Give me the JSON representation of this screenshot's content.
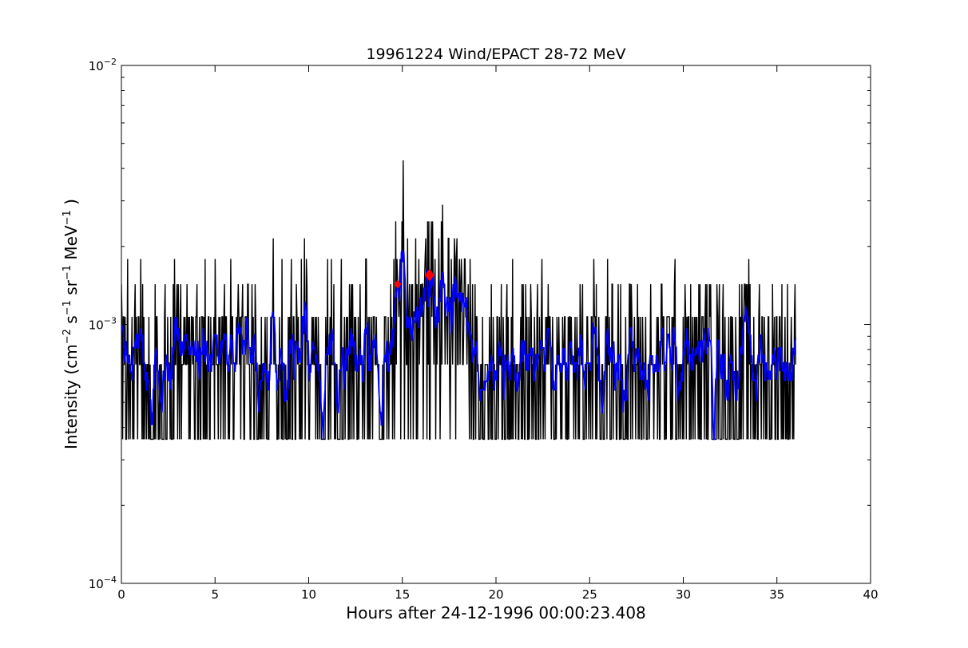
{
  "chart_data": {
    "type": "line",
    "title": "19961224 Wind/EPACT 28-72 MeV",
    "xlabel": "Hours after 24-12-1996 00:00:23.408",
    "ylabel": {
      "prefix": "Intensity (cm",
      "exp1": "−2",
      "s": " s",
      "exp2": "−1",
      "sr": " sr",
      "exp3": "−1",
      "mev": " MeV",
      "exp4": "−1",
      "suffix": " )"
    },
    "xlim": [
      0,
      40
    ],
    "ylim": [
      0.0001,
      0.01
    ],
    "yscale": "log",
    "grid": false,
    "x_ticks": [
      "0",
      "5",
      "10",
      "15",
      "20",
      "25",
      "30",
      "35",
      "40"
    ],
    "y_ticks": [
      {
        "value": 0.0001,
        "base": "10",
        "exp": "−4"
      },
      {
        "value": 0.001,
        "base": "10",
        "exp": "−3"
      },
      {
        "value": 0.01,
        "base": "10",
        "exp": "−2"
      }
    ],
    "series": [
      {
        "style": "raw",
        "color": "#000000",
        "x_range": [
          0,
          36
        ],
        "n_points": 1080,
        "levels": [
          0.00036,
          0.0007,
          0.00107,
          0.00143,
          0.00179,
          0.00215,
          0.0025,
          0.0029,
          0.0043
        ]
      },
      {
        "style": "smoothed",
        "color": "#0000ff",
        "x_range": [
          0,
          36
        ],
        "n_points": 1080
      }
    ],
    "markers": [
      {
        "x": 14.75,
        "y": 0.00143,
        "color": "#ff0000",
        "size": "small"
      },
      {
        "x": 16.45,
        "y": 0.00155,
        "color": "#ff0000",
        "size": "large"
      }
    ]
  }
}
